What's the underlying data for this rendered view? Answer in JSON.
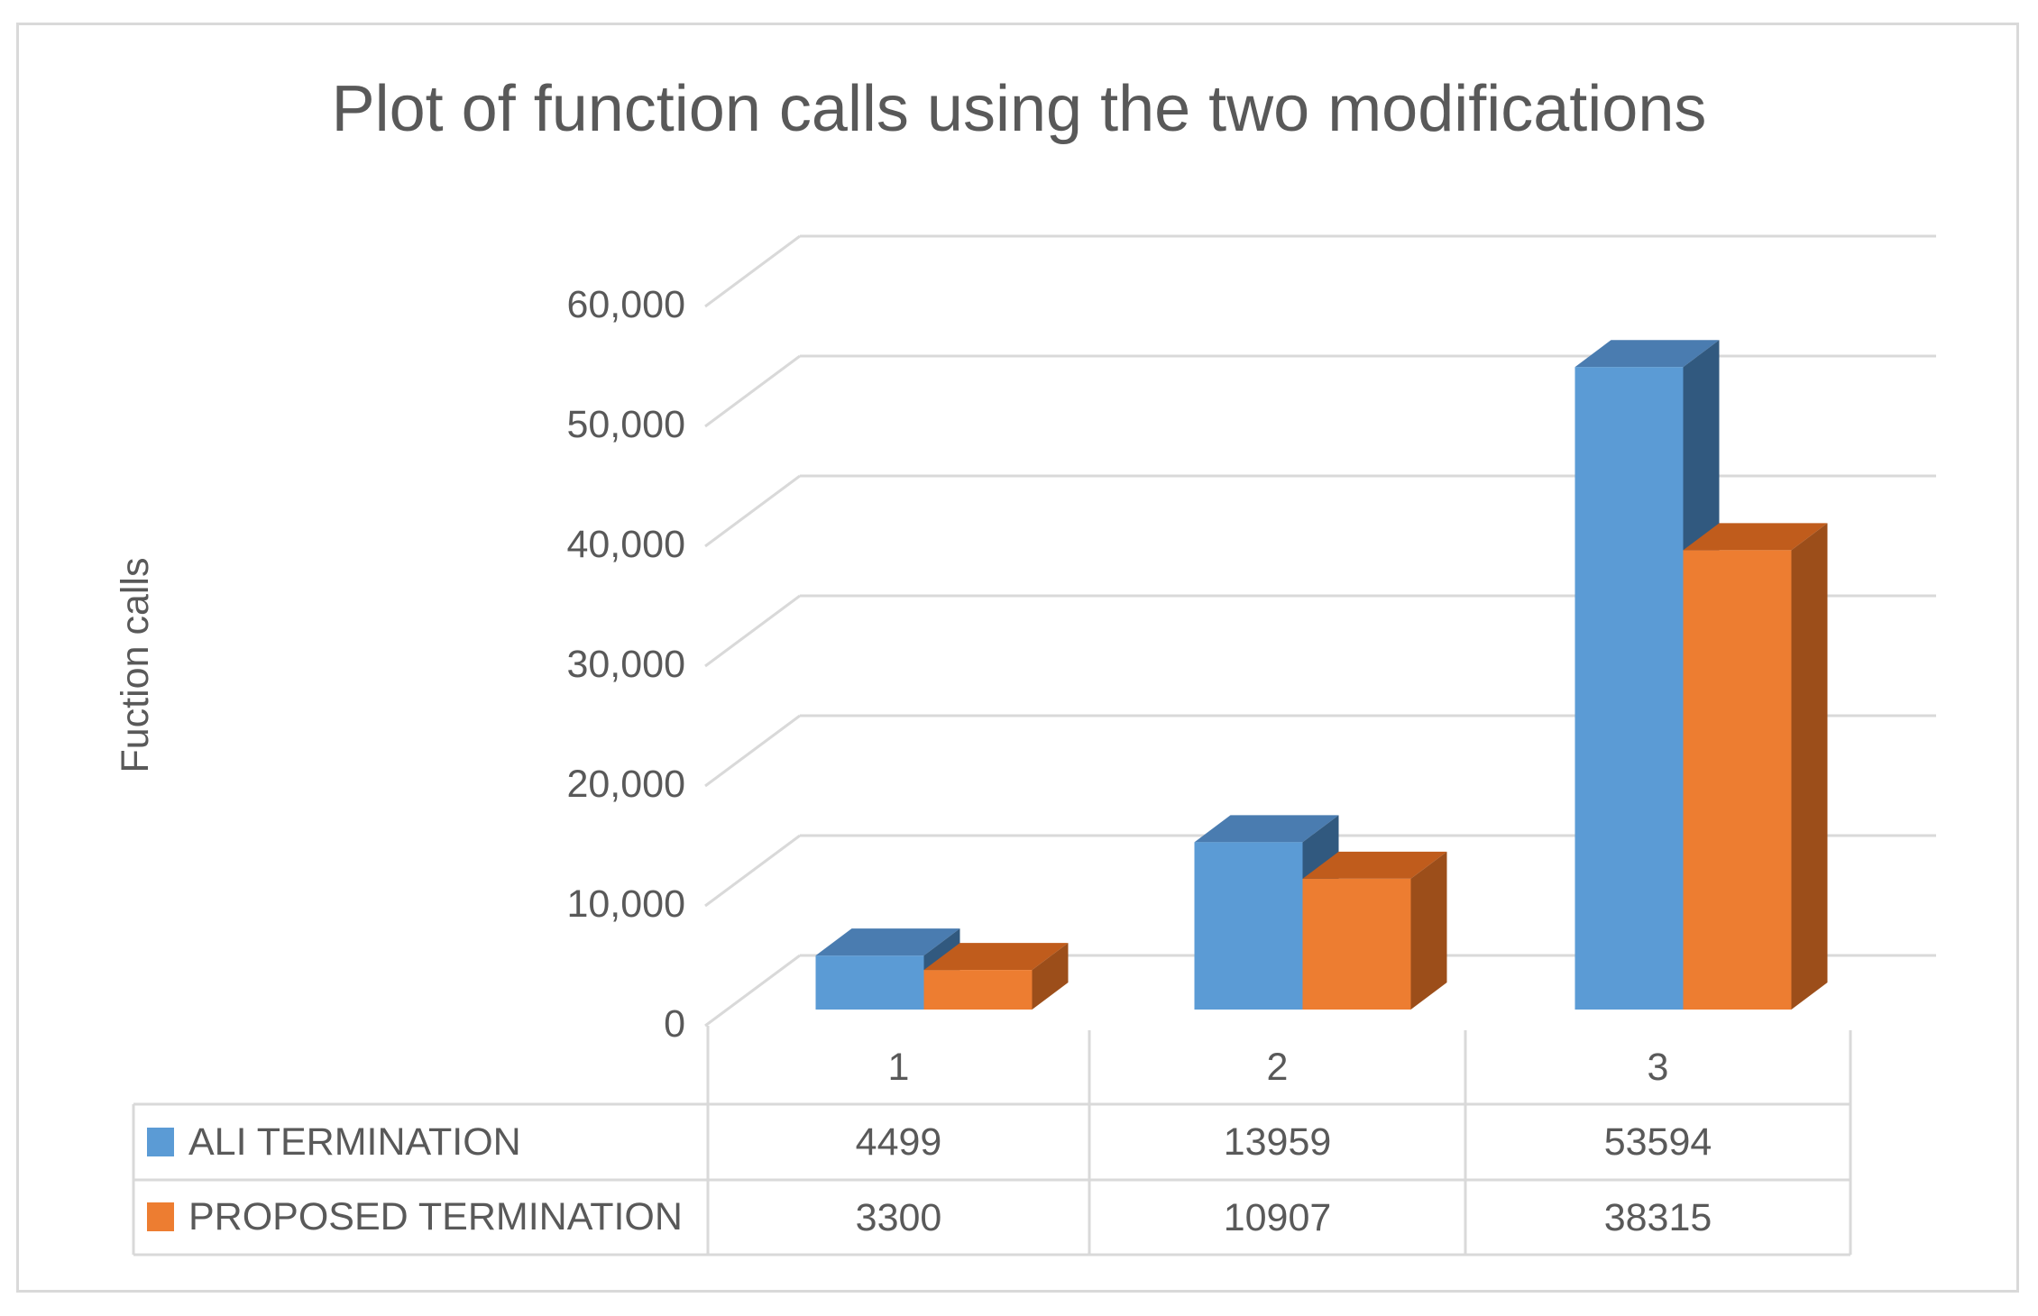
{
  "title": "Plot of function calls using the two modifications",
  "y_axis": {
    "label": "Fuction calls",
    "ticks": [
      "60,000",
      "50,000",
      "40,000",
      "30,000",
      "20,000",
      "10,000",
      "0"
    ]
  },
  "x_axis": {
    "categories": [
      "1",
      "2",
      "3"
    ]
  },
  "colors": {
    "grid": "#d9d9d9",
    "text": "#595959",
    "series1_front": "#5b9bd5",
    "series1_top": "#4a7cb0",
    "series1_side": "#31597f",
    "series2_front": "#ed7d31",
    "series2_top": "#c05c1c",
    "series2_side": "#9c4e1a"
  },
  "chart_data": {
    "type": "bar",
    "variant": "3d-clustered-column",
    "title": "Plot of function calls using the two modifications",
    "xlabel": "",
    "ylabel": "Fuction calls",
    "categories": [
      "1",
      "2",
      "3"
    ],
    "series": [
      {
        "name": "ALI TERMINATION",
        "color": "#5b9bd5",
        "values": [
          4499,
          13959,
          53594
        ]
      },
      {
        "name": "PROPOSED TERMINATION",
        "color": "#ed7d31",
        "values": [
          3300,
          10907,
          38315
        ]
      }
    ],
    "ylim": [
      0,
      60000
    ],
    "ytick_step": 10000,
    "grid": true,
    "legend_position": "data-table-left",
    "data_table_shown": true
  }
}
